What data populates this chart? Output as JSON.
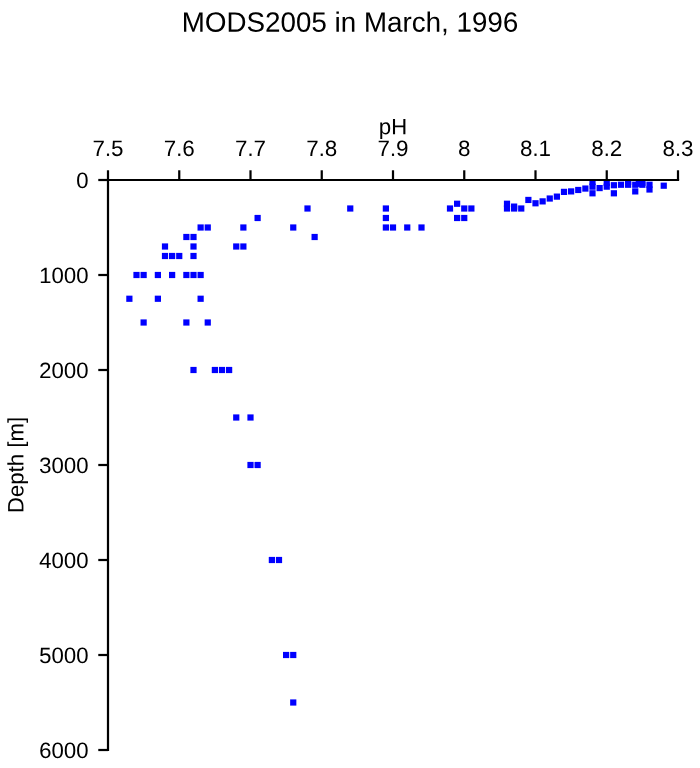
{
  "chart_data": {
    "type": "scatter",
    "title": "MODS2005 in March, 1996",
    "xlabel": "pH",
    "ylabel": "Depth [m]",
    "x": [
      7.53,
      7.54,
      7.55,
      7.55,
      7.57,
      7.57,
      7.58,
      7.58,
      7.59,
      7.6,
      7.59,
      7.61,
      7.62,
      7.63,
      7.61,
      7.62,
      7.62,
      7.62,
      7.61,
      7.64,
      7.63,
      7.62,
      7.63,
      7.64,
      7.65,
      7.66,
      7.67,
      7.68,
      7.7,
      7.7,
      7.71,
      7.68,
      7.69,
      7.69,
      7.71,
      7.76,
      7.78,
      7.79,
      7.84,
      7.73,
      7.74,
      7.75,
      7.76,
      7.76,
      7.89,
      7.89,
      7.89,
      7.9,
      7.92,
      7.94,
      7.98,
      7.99,
      8.0,
      8.01,
      7.99,
      8.0,
      8.06,
      8.06,
      8.07,
      8.07,
      8.08,
      8.09,
      8.1,
      8.11,
      8.12,
      8.13,
      8.14,
      8.15,
      8.16,
      8.17,
      8.18,
      8.19,
      8.2,
      8.21,
      8.22,
      8.23,
      8.24,
      8.245,
      8.25,
      8.26,
      8.28,
      8.18,
      8.18,
      8.2,
      8.21,
      8.23,
      8.24,
      8.25,
      8.26
    ],
    "values": [
      1250,
      1000,
      1000,
      1500,
      1250,
      1000,
      700,
      800,
      800,
      800,
      1000,
      1000,
      1000,
      1000,
      600,
      600,
      700,
      800,
      1500,
      1500,
      1250,
      2000,
      500,
      500,
      2000,
      2000,
      2000,
      2500,
      2500,
      3000,
      3000,
      700,
      700,
      500,
      400,
      500,
      300,
      600,
      300,
      4000,
      4000,
      5000,
      5000,
      5500,
      300,
      400,
      500,
      500,
      500,
      500,
      300,
      250,
      300,
      300,
      400,
      400,
      250,
      300,
      280,
      300,
      300,
      210,
      245,
      225,
      195,
      175,
      125,
      120,
      105,
      90,
      70,
      85,
      70,
      55,
      50,
      50,
      50,
      40,
      50,
      50,
      60,
      20,
      140,
      30,
      140,
      20,
      120,
      30,
      100
    ],
    "color": "#0000ff",
    "marker": "square",
    "xlim": [
      7.5,
      8.3
    ],
    "xticks": [
      7.5,
      7.6,
      7.7,
      7.8,
      7.9,
      8,
      8.1,
      8.2,
      8.3
    ],
    "ylim": [
      6000,
      0
    ],
    "yticks": [
      0,
      1000,
      2000,
      3000,
      4000,
      5000,
      6000
    ],
    "grid": false
  }
}
